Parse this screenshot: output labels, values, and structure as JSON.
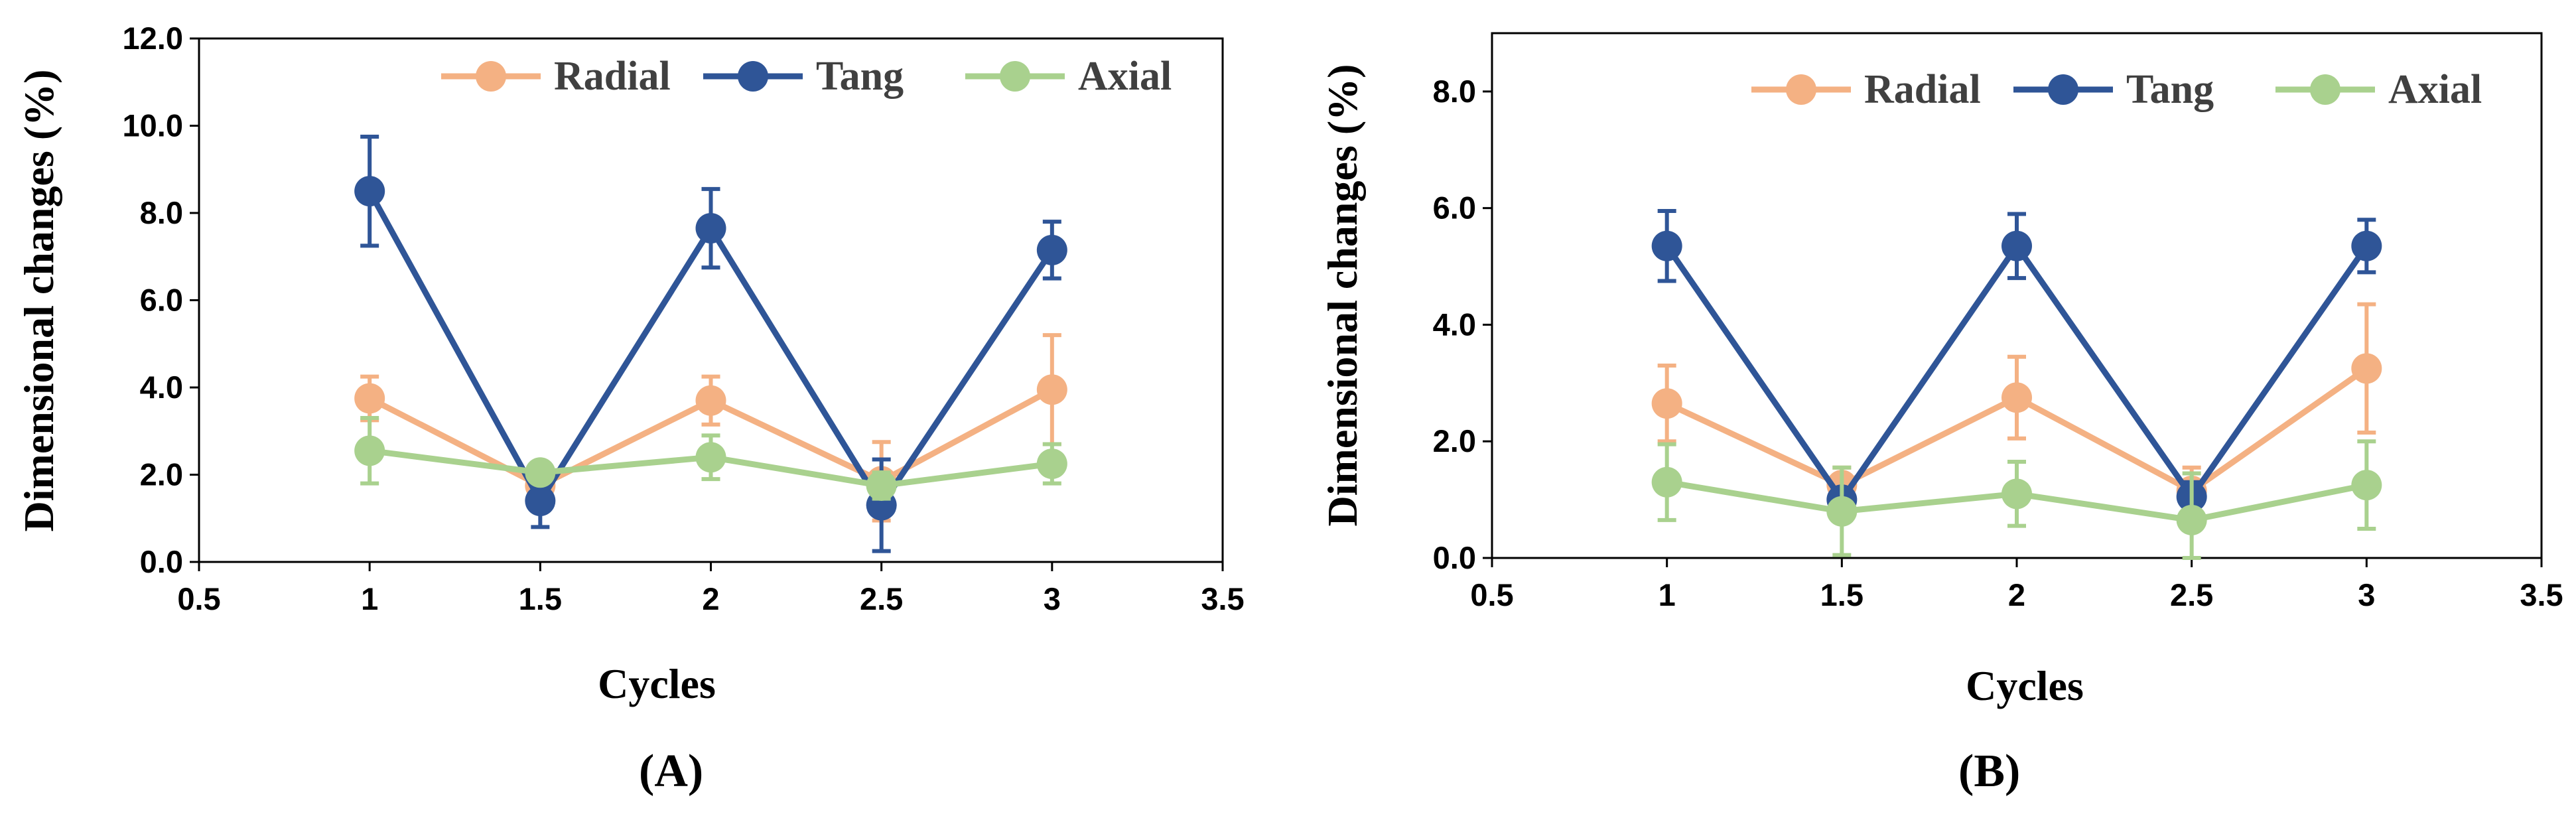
{
  "chart_data": [
    {
      "type": "line",
      "panel_label": "A",
      "panel_prefix": "(",
      "panel_suffix": ")",
      "xlabel": "Cycles",
      "ylabel": "Dimensional changes (%)",
      "xlim": [
        0.5,
        3.5
      ],
      "ylim": [
        0,
        12
      ],
      "x_ticks": [
        0.5,
        1,
        1.5,
        2,
        2.5,
        3,
        3.5
      ],
      "x_tick_labels": [
        "0.5",
        "1",
        "1.5",
        "2",
        "2.5",
        "3",
        "3.5"
      ],
      "y_ticks": [
        0,
        2,
        4,
        6,
        8,
        10,
        12
      ],
      "y_tick_labels": [
        "0.0",
        "2.0",
        "4.0",
        "6.0",
        "8.0",
        "10.0",
        "12.0"
      ],
      "grid": false,
      "legend_position": "top-right",
      "x": [
        1,
        1.5,
        2,
        2.5,
        3
      ],
      "series": [
        {
          "name": "Radial",
          "color": "#F4B183",
          "values": [
            3.75,
            1.75,
            3.7,
            1.85,
            3.95
          ],
          "errors": [
            0.5,
            0.35,
            0.55,
            0.9,
            1.25
          ]
        },
        {
          "name": "Tang",
          "color": "#2F5597",
          "values": [
            8.5,
            1.4,
            7.65,
            1.3,
            7.15
          ],
          "errors": [
            1.25,
            0.6,
            0.9,
            1.05,
            0.65
          ]
        },
        {
          "name": "Axial",
          "color": "#A9D18E",
          "values": [
            2.55,
            2.05,
            2.4,
            1.75,
            2.25
          ],
          "errors": [
            0.75,
            0.2,
            0.5,
            0.3,
            0.45
          ]
        }
      ]
    },
    {
      "type": "line",
      "panel_label": "B",
      "panel_prefix": "(",
      "panel_suffix": ")",
      "xlabel": "Cycles",
      "ylabel": "Dimensional changes (%)",
      "xlim": [
        0.5,
        3.5
      ],
      "ylim": [
        0,
        9
      ],
      "x_ticks": [
        0.5,
        1,
        1.5,
        2,
        2.5,
        3,
        3.5
      ],
      "x_tick_labels": [
        "0.5",
        "1",
        "1.5",
        "2",
        "2.5",
        "3",
        "3.5"
      ],
      "y_ticks": [
        0,
        2,
        4,
        6,
        8
      ],
      "y_tick_labels": [
        "0.0",
        "2.0",
        "4.0",
        "6.0",
        "8.0"
      ],
      "grid": false,
      "legend_position": "top-right",
      "x": [
        1,
        1.5,
        2,
        2.5,
        3
      ],
      "series": [
        {
          "name": "Radial",
          "color": "#F4B183",
          "values": [
            2.65,
            1.25,
            2.75,
            1.15,
            3.25
          ],
          "errors": [
            0.65,
            0.3,
            0.7,
            0.4,
            1.1
          ]
        },
        {
          "name": "Tang",
          "color": "#2F5597",
          "values": [
            5.35,
            1.0,
            5.35,
            1.05,
            5.35
          ],
          "errors": [
            0.6,
            0.2,
            0.55,
            0.25,
            0.45
          ]
        },
        {
          "name": "Axial",
          "color": "#A9D18E",
          "values": [
            1.3,
            0.8,
            1.1,
            0.65,
            1.25
          ],
          "errors": [
            0.65,
            0.75,
            0.55,
            0.8,
            0.75
          ]
        }
      ]
    }
  ]
}
